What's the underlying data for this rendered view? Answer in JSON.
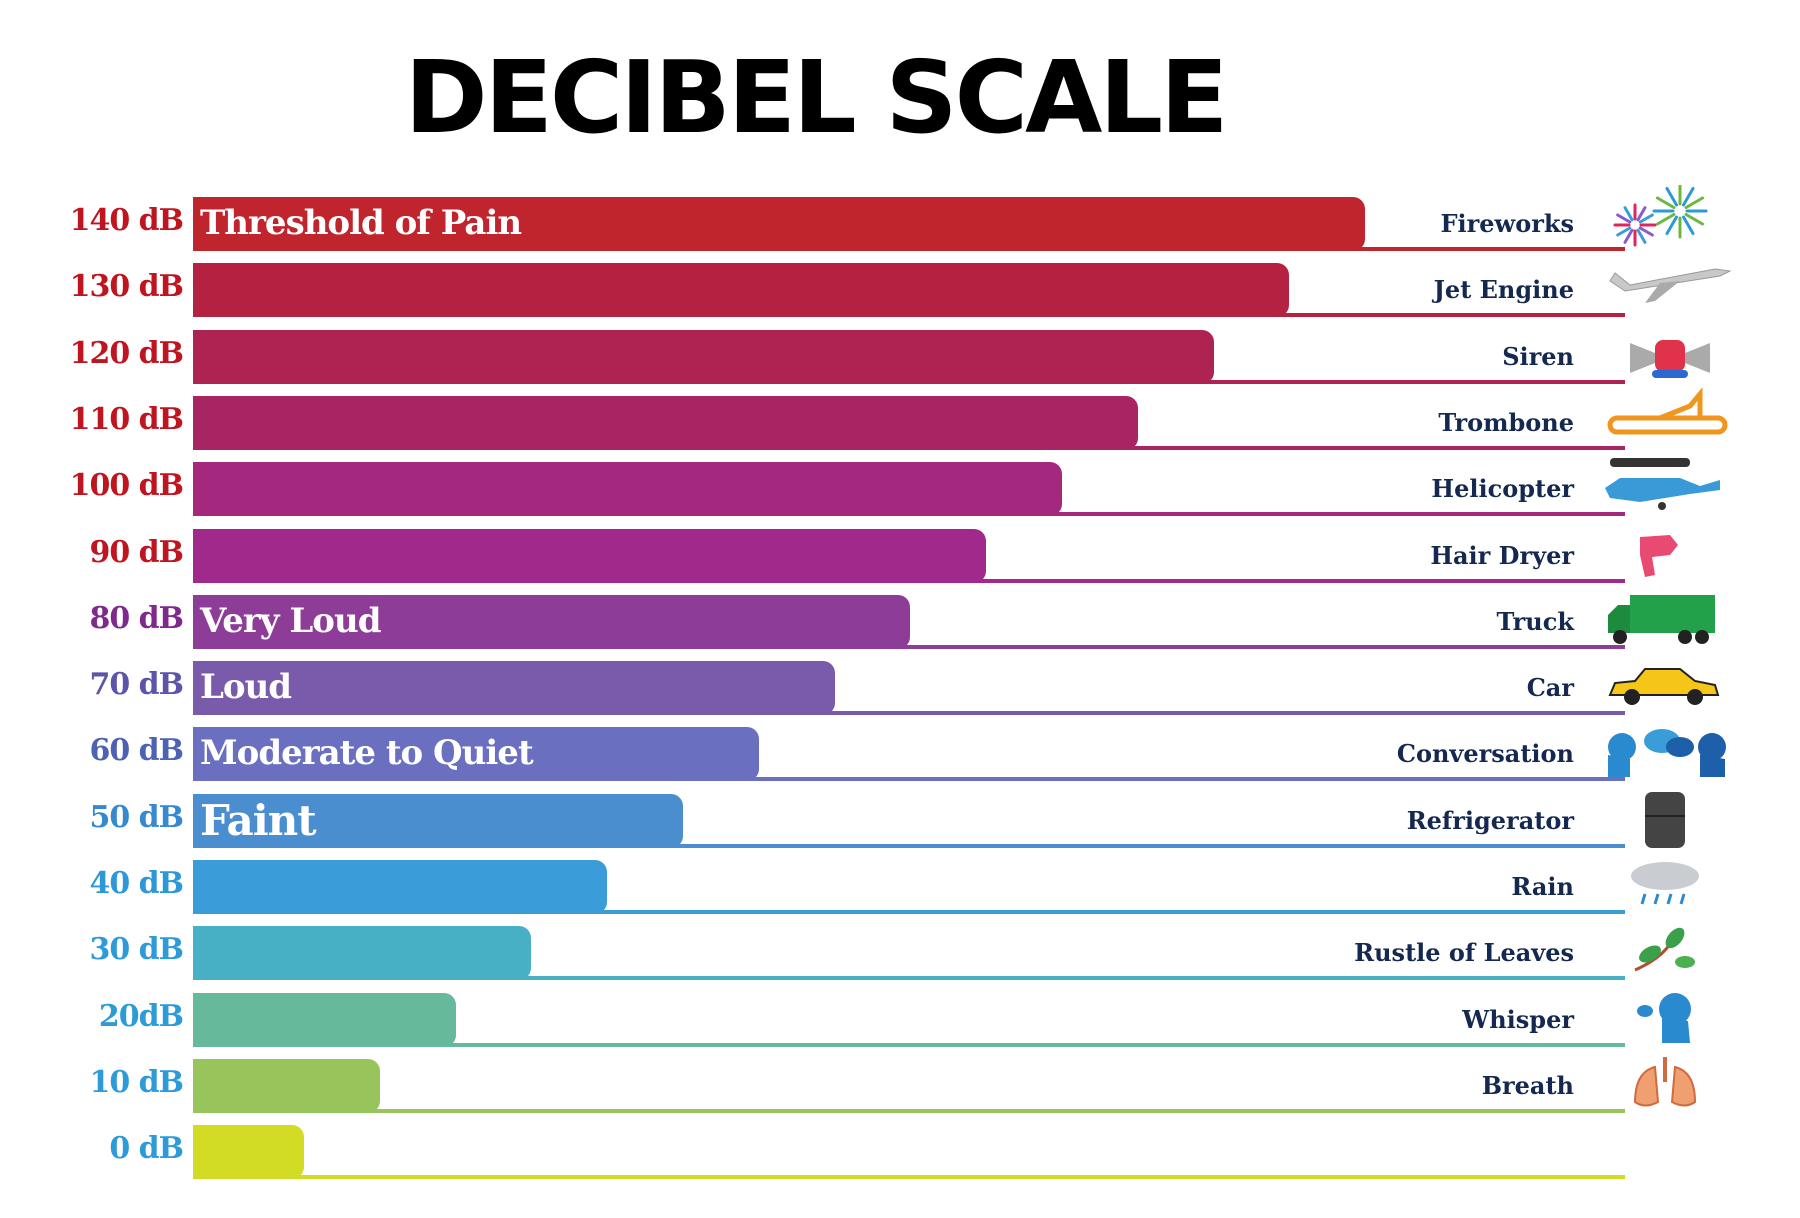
{
  "title": "DECIBEL SCALE",
  "chart_data": {
    "type": "bar",
    "orientation": "horizontal",
    "title": "DECIBEL SCALE",
    "unit": "dB",
    "xlim": [
      0,
      140
    ],
    "grid": false,
    "rows": [
      {
        "value": 140,
        "label": "140 dB",
        "category": "Threshold of Pain",
        "source": "Fireworks",
        "icon": "fireworks-icon",
        "color": "#c0242d",
        "label_color": "#bf1520"
      },
      {
        "value": 130,
        "label": "130 dB",
        "category": "",
        "source": "Jet Engine",
        "icon": "airplane-icon",
        "color": "#b52141",
        "label_color": "#bf1520"
      },
      {
        "value": 120,
        "label": "120 dB",
        "category": "",
        "source": "Siren",
        "icon": "siren-icon",
        "color": "#ae2352",
        "label_color": "#bf1520"
      },
      {
        "value": 110,
        "label": "110 dB",
        "category": "",
        "source": "Trombone",
        "icon": "trombone-icon",
        "color": "#a82463",
        "label_color": "#bf1520"
      },
      {
        "value": 100,
        "label": "100 dB",
        "category": "",
        "source": "Helicopter",
        "icon": "helicopter-icon",
        "color": "#a3287e",
        "label_color": "#bf1520"
      },
      {
        "value": 90,
        "label": "90 dB",
        "category": "",
        "source": "Hair Dryer",
        "icon": "hair-dryer-icon",
        "color": "#a0298b",
        "label_color": "#bf1520"
      },
      {
        "value": 80,
        "label": "80 dB",
        "category": "Very Loud",
        "source": "Truck",
        "icon": "truck-icon",
        "color": "#8d3d97",
        "label_color": "#7d2a8c"
      },
      {
        "value": 70,
        "label": "70 dB",
        "category": "Loud",
        "source": "Car",
        "icon": "car-icon",
        "color": "#7a5bab",
        "label_color": "#5c54a8"
      },
      {
        "value": 60,
        "label": "60 dB",
        "category": "Moderate to Quiet",
        "source": "Conversation",
        "icon": "conversation-icon",
        "color": "#6b6fc0",
        "label_color": "#4d62b0"
      },
      {
        "value": 50,
        "label": "50 dB",
        "category": "Faint",
        "source": "Refrigerator",
        "icon": "refrigerator-icon",
        "color": "#4a8ed0",
        "label_color": "#3489d0"
      },
      {
        "value": 40,
        "label": "40 dB",
        "category": "",
        "source": "Rain",
        "icon": "rain-cloud-icon",
        "color": "#3a9dd9",
        "label_color": "#2d98d8"
      },
      {
        "value": 30,
        "label": "30 dB",
        "category": "",
        "source": "Rustle of Leaves",
        "icon": "leaves-icon",
        "color": "#48b0c4",
        "label_color": "#2d9bd8"
      },
      {
        "value": 20,
        "label": "20dB",
        "category": "",
        "source": "Whisper",
        "icon": "whisper-icon",
        "color": "#66b99b",
        "label_color": "#2d9bd8"
      },
      {
        "value": 10,
        "label": "10 dB",
        "category": "",
        "source": "Breath",
        "icon": "lungs-icon",
        "color": "#98c55b",
        "label_color": "#2d9bd8"
      },
      {
        "value": 0,
        "label": "0 dB",
        "category": "",
        "source": "",
        "icon": "",
        "color": "#d3dc25",
        "label_color": "#2d9bd8"
      }
    ]
  }
}
